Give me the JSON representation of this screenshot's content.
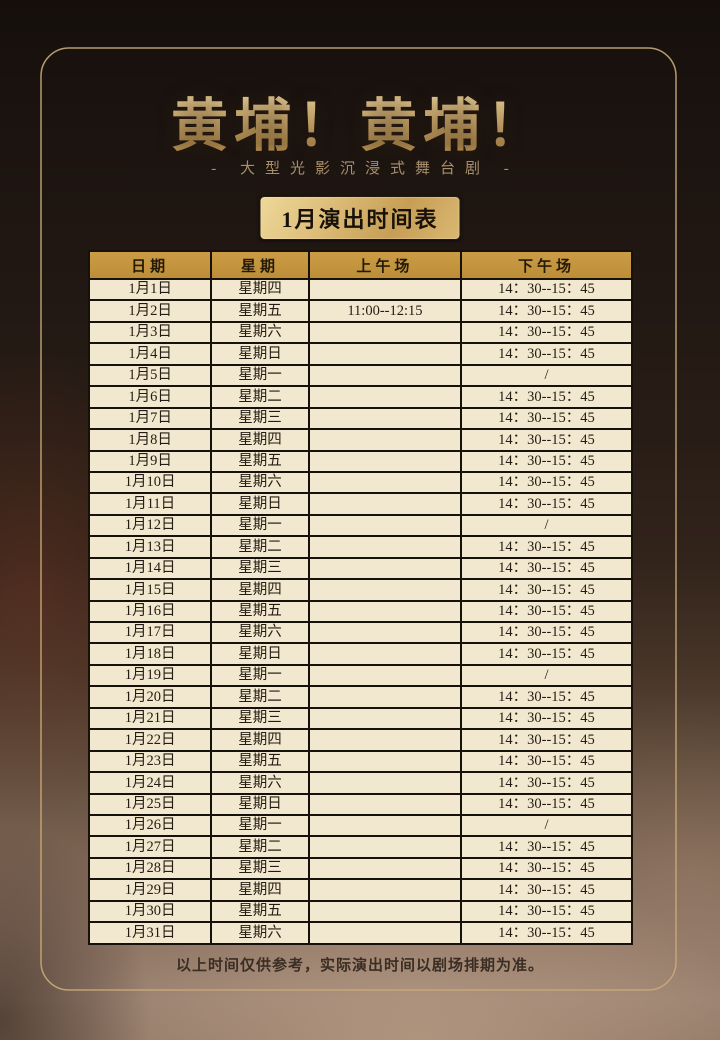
{
  "page": {
    "title": "黄埔！黄埔！",
    "subtitle": "- 大型光影沉浸式舞台剧 -",
    "badge": "1月演出时间表",
    "footer_note": "以上时间仅供参考，实际演出时间以剧场排期为准。"
  },
  "colors": {
    "frame_line": "#c9aa78",
    "title_gold": "#d8b87c",
    "badge_gold": "#dfc07c",
    "table_header_bg": "#c2923c",
    "table_row_bg": "#f2e8cf",
    "table_border": "#17110b",
    "text_dark": "#241c12",
    "background_top": "#150f0c",
    "background_bottom": "#947b69"
  },
  "table": {
    "headers": [
      "日期",
      "星期",
      "上午场",
      "下午场"
    ],
    "rows": [
      {
        "date": "1月1日",
        "weekday": "星期四",
        "morning": "",
        "afternoon": "14：30--15：45"
      },
      {
        "date": "1月2日",
        "weekday": "星期五",
        "morning": "11:00--12:15",
        "afternoon": "14：30--15：45"
      },
      {
        "date": "1月3日",
        "weekday": "星期六",
        "morning": "",
        "afternoon": "14：30--15：45"
      },
      {
        "date": "1月4日",
        "weekday": "星期日",
        "morning": "",
        "afternoon": "14：30--15：45"
      },
      {
        "date": "1月5日",
        "weekday": "星期一",
        "morning": "",
        "afternoon": "/"
      },
      {
        "date": "1月6日",
        "weekday": "星期二",
        "morning": "",
        "afternoon": "14：30--15：45"
      },
      {
        "date": "1月7日",
        "weekday": "星期三",
        "morning": "",
        "afternoon": "14：30--15：45"
      },
      {
        "date": "1月8日",
        "weekday": "星期四",
        "morning": "",
        "afternoon": "14：30--15：45"
      },
      {
        "date": "1月9日",
        "weekday": "星期五",
        "morning": "",
        "afternoon": "14：30--15：45"
      },
      {
        "date": "1月10日",
        "weekday": "星期六",
        "morning": "",
        "afternoon": "14：30--15：45"
      },
      {
        "date": "1月11日",
        "weekday": "星期日",
        "morning": "",
        "afternoon": "14：30--15：45"
      },
      {
        "date": "1月12日",
        "weekday": "星期一",
        "morning": "",
        "afternoon": "/"
      },
      {
        "date": "1月13日",
        "weekday": "星期二",
        "morning": "",
        "afternoon": "14：30--15：45"
      },
      {
        "date": "1月14日",
        "weekday": "星期三",
        "morning": "",
        "afternoon": "14：30--15：45"
      },
      {
        "date": "1月15日",
        "weekday": "星期四",
        "morning": "",
        "afternoon": "14：30--15：45"
      },
      {
        "date": "1月16日",
        "weekday": "星期五",
        "morning": "",
        "afternoon": "14：30--15：45"
      },
      {
        "date": "1月17日",
        "weekday": "星期六",
        "morning": "",
        "afternoon": "14：30--15：45"
      },
      {
        "date": "1月18日",
        "weekday": "星期日",
        "morning": "",
        "afternoon": "14：30--15：45"
      },
      {
        "date": "1月19日",
        "weekday": "星期一",
        "morning": "",
        "afternoon": "/"
      },
      {
        "date": "1月20日",
        "weekday": "星期二",
        "morning": "",
        "afternoon": "14：30--15：45"
      },
      {
        "date": "1月21日",
        "weekday": "星期三",
        "morning": "",
        "afternoon": "14：30--15：45"
      },
      {
        "date": "1月22日",
        "weekday": "星期四",
        "morning": "",
        "afternoon": "14：30--15：45"
      },
      {
        "date": "1月23日",
        "weekday": "星期五",
        "morning": "",
        "afternoon": "14：30--15：45"
      },
      {
        "date": "1月24日",
        "weekday": "星期六",
        "morning": "",
        "afternoon": "14：30--15：45"
      },
      {
        "date": "1月25日",
        "weekday": "星期日",
        "morning": "",
        "afternoon": "14：30--15：45"
      },
      {
        "date": "1月26日",
        "weekday": "星期一",
        "morning": "",
        "afternoon": "/"
      },
      {
        "date": "1月27日",
        "weekday": "星期二",
        "morning": "",
        "afternoon": "14：30--15：45"
      },
      {
        "date": "1月28日",
        "weekday": "星期三",
        "morning": "",
        "afternoon": "14：30--15：45"
      },
      {
        "date": "1月29日",
        "weekday": "星期四",
        "morning": "",
        "afternoon": "14：30--15：45"
      },
      {
        "date": "1月30日",
        "weekday": "星期五",
        "morning": "",
        "afternoon": "14：30--15：45"
      },
      {
        "date": "1月31日",
        "weekday": "星期六",
        "morning": "",
        "afternoon": "14：30--15：45"
      }
    ]
  }
}
